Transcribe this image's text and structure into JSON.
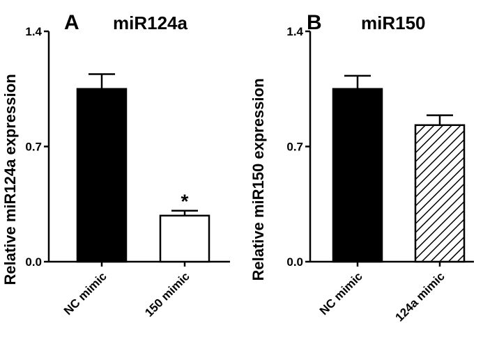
{
  "chart_data": [
    {
      "type": "bar",
      "panel": "A",
      "title": "miR124a",
      "ylabel": "Relative miR124a expression",
      "xlabel": "",
      "ylim": [
        0,
        1.4
      ],
      "yticks": [
        "0.0",
        "0.7",
        "1.4"
      ],
      "categories": [
        "NC mimic",
        "150 mimic"
      ],
      "values": [
        1.05,
        0.28
      ],
      "errors": [
        0.09,
        0.03
      ],
      "fills": [
        "solid",
        "open"
      ],
      "annotations": [
        "",
        "*"
      ]
    },
    {
      "type": "bar",
      "panel": "B",
      "title": "miR150",
      "ylabel": "Relative miR150 expression",
      "xlabel": "",
      "ylim": [
        0,
        1.4
      ],
      "yticks": [
        "0.0",
        "0.7",
        "1.4"
      ],
      "categories": [
        "NC mimic",
        "124a mimic"
      ],
      "values": [
        1.05,
        0.83
      ],
      "errors": [
        0.08,
        0.06
      ],
      "fills": [
        "solid",
        "hatched"
      ],
      "annotations": [
        "",
        ""
      ]
    }
  ],
  "colors": {
    "bar_solid": "#000000",
    "bar_open": "#ffffff",
    "axis": "#000000"
  }
}
